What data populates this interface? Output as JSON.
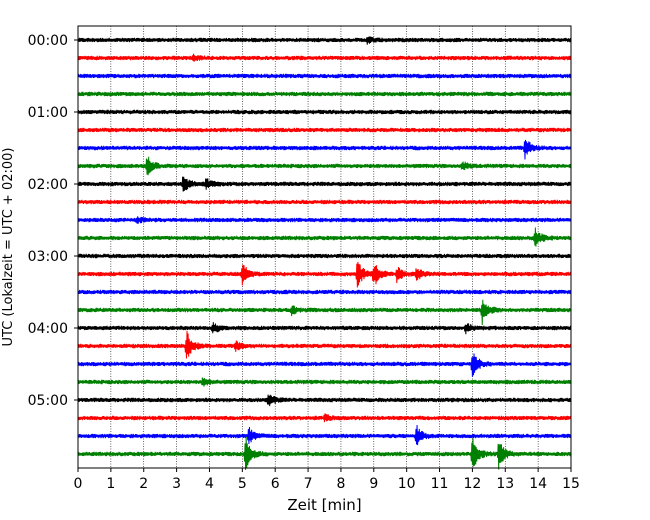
{
  "chart_data": {
    "type": "line",
    "subtype": "helicorder-seismogram",
    "title": "",
    "xlabel": "Zeit  [min]",
    "ylabel": "UTC (Lokalzeit = UTC + 02:00)",
    "xlim": [
      0,
      15
    ],
    "x_ticks": [
      0,
      1,
      2,
      3,
      4,
      5,
      6,
      7,
      8,
      9,
      10,
      11,
      12,
      13,
      14,
      15
    ],
    "x_tick_labels": [
      "0",
      "1",
      "2",
      "3",
      "4",
      "5",
      "6",
      "7",
      "8",
      "9",
      "10",
      "11",
      "12",
      "13",
      "14",
      "15"
    ],
    "y_tick_labels": [
      "00:00",
      "01:00",
      "02:00",
      "03:00",
      "04:00",
      "05:00"
    ],
    "y_tick_traces": [
      0,
      4,
      8,
      12,
      16,
      20
    ],
    "minutes_per_trace": 15,
    "trace_count": 24,
    "trace_start_times": [
      "00:00",
      "00:15",
      "00:30",
      "00:45",
      "01:00",
      "01:15",
      "01:30",
      "01:45",
      "02:00",
      "02:15",
      "02:30",
      "02:45",
      "03:00",
      "03:15",
      "03:30",
      "03:45",
      "04:00",
      "04:15",
      "04:30",
      "04:45",
      "05:00",
      "05:15",
      "05:30",
      "05:45"
    ],
    "color_cycle": [
      "#000000",
      "#ff0000",
      "#0000ff",
      "#008000"
    ],
    "vertical_grid": true,
    "events": [
      {
        "trace": 0,
        "minute": 8.8,
        "amplitude": 0.3
      },
      {
        "trace": 1,
        "minute": 3.5,
        "amplitude": 0.25
      },
      {
        "trace": 6,
        "minute": 13.6,
        "amplitude": 1.0
      },
      {
        "trace": 7,
        "minute": 2.1,
        "amplitude": 1.0
      },
      {
        "trace": 7,
        "minute": 11.7,
        "amplitude": 0.4
      },
      {
        "trace": 8,
        "minute": 3.2,
        "amplitude": 0.9
      },
      {
        "trace": 8,
        "minute": 3.9,
        "amplitude": 0.5
      },
      {
        "trace": 10,
        "minute": 1.8,
        "amplitude": 0.3
      },
      {
        "trace": 11,
        "minute": 13.9,
        "amplitude": 1.0
      },
      {
        "trace": 13,
        "minute": 5.0,
        "amplitude": 1.1
      },
      {
        "trace": 13,
        "minute": 8.5,
        "amplitude": 1.3
      },
      {
        "trace": 13,
        "minute": 9.0,
        "amplitude": 1.3
      },
      {
        "trace": 13,
        "minute": 9.7,
        "amplitude": 0.7
      },
      {
        "trace": 13,
        "minute": 10.3,
        "amplitude": 0.6
      },
      {
        "trace": 15,
        "minute": 6.5,
        "amplitude": 0.4
      },
      {
        "trace": 15,
        "minute": 12.3,
        "amplitude": 1.3
      },
      {
        "trace": 16,
        "minute": 4.1,
        "amplitude": 0.6
      },
      {
        "trace": 16,
        "minute": 11.8,
        "amplitude": 0.5
      },
      {
        "trace": 17,
        "minute": 3.3,
        "amplitude": 1.6
      },
      {
        "trace": 17,
        "minute": 4.8,
        "amplitude": 0.4
      },
      {
        "trace": 18,
        "minute": 12.0,
        "amplitude": 1.3
      },
      {
        "trace": 19,
        "minute": 3.8,
        "amplitude": 0.4
      },
      {
        "trace": 20,
        "minute": 5.8,
        "amplitude": 0.7
      },
      {
        "trace": 21,
        "minute": 7.5,
        "amplitude": 0.3
      },
      {
        "trace": 22,
        "minute": 5.2,
        "amplitude": 0.8
      },
      {
        "trace": 22,
        "minute": 10.3,
        "amplitude": 1.0
      },
      {
        "trace": 23,
        "minute": 5.1,
        "amplitude": 1.8
      },
      {
        "trace": 23,
        "minute": 12.0,
        "amplitude": 1.8
      },
      {
        "trace": 23,
        "minute": 12.8,
        "amplitude": 1.5
      }
    ]
  }
}
